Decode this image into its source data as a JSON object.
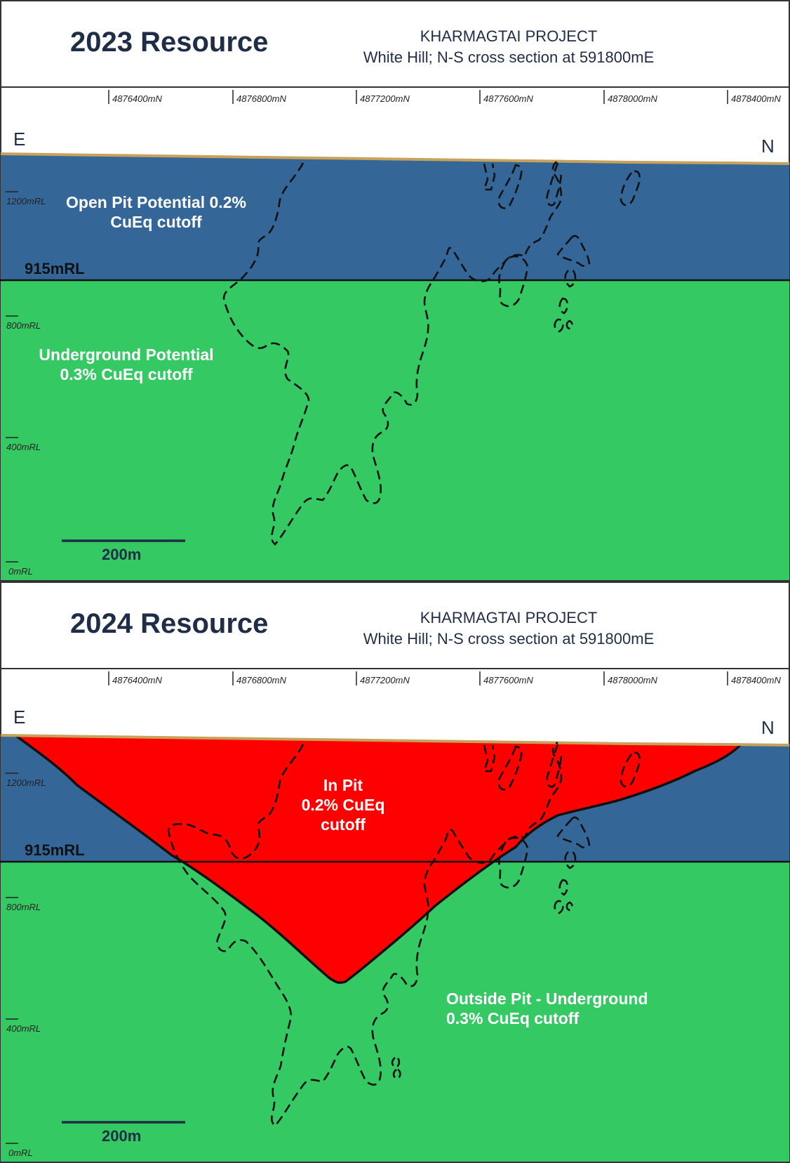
{
  "panels": [
    {
      "title": "2023 Resource",
      "project_name": "KHARMAGTAI PROJECT",
      "section_desc": "White Hill; N-S cross section at 591800mE",
      "northings": [
        "4876400mN",
        "4876800mN",
        "4877200mN",
        "4877600mN",
        "4878000mN",
        "4878400mN"
      ],
      "rl_labels": [
        "1200mRL",
        "800mRL",
        "400mRL",
        "0mRL"
      ],
      "left_dir": "E",
      "right_dir": "N",
      "level_label": "915mRL",
      "open_pit_label": [
        "Open Pit Potential 0.2%",
        "CuEq cutoff"
      ],
      "underground_label": [
        "Underground Potential",
        "0.3% CuEq cutoff"
      ],
      "scale_bar": "200m"
    },
    {
      "title": "2024 Resource",
      "project_name": "KHARMAGTAI PROJECT",
      "section_desc": "White Hill; N-S cross section at 591800mE",
      "northings": [
        "4876400mN",
        "4876800mN",
        "4877200mN",
        "4877600mN",
        "4878000mN",
        "4878400mN"
      ],
      "rl_labels": [
        "1200mRL",
        "800mRL",
        "400mRL",
        "0mRL"
      ],
      "left_dir": "E",
      "right_dir": "N",
      "level_label": "915mRL",
      "in_pit_label": [
        "In Pit",
        "0.2% CuEq",
        "cutoff"
      ],
      "outside_pit_label": [
        "Outside Pit - Underground",
        "0.3% CuEq cutoff"
      ],
      "scale_bar": "200m"
    }
  ],
  "colors": {
    "blue_zone": "#346698",
    "green_zone": "#35c964",
    "pit": "#ff0000",
    "surface": "#c8a15a",
    "text_dark": "#1f2d47"
  }
}
